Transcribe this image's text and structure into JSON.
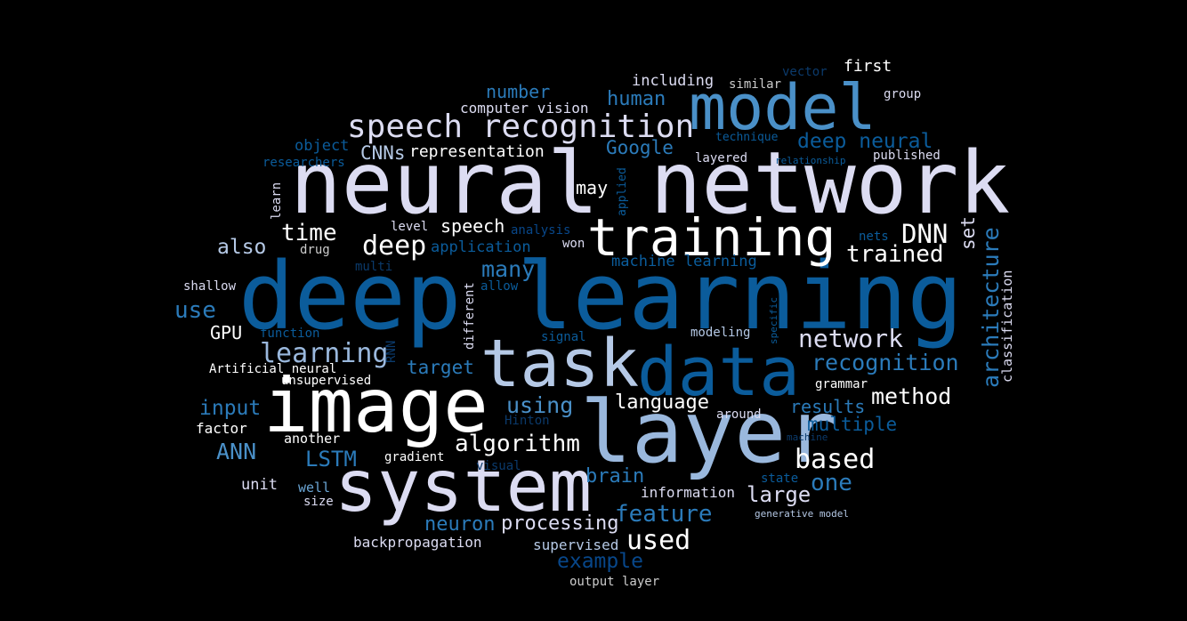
{
  "palette": {
    "white": "#ffffff",
    "lavender": "#dcdcf2",
    "silver": "#cccccc",
    "pale_blue": "#b5c9e6",
    "light_blue": "#9ab8dd",
    "sky": "#6aa5d4",
    "mid_blue": "#4a90c8",
    "blue": "#2b7bba",
    "deep_blue": "#0b5c9b",
    "navy": "#08478a",
    "dark_navy": "#0b3a6b"
  },
  "words": {
    "w001": "deep learning",
    "w002": "neural network",
    "w003": "image",
    "w004": "system",
    "w005": "layer",
    "w006": "data",
    "w007": "task",
    "w008": "model",
    "w009": "training",
    "w010": "speech recognition",
    "w011": "deep",
    "w012": "DNN",
    "w013": "network",
    "w014": "algorithm",
    "w015": "learning",
    "w016": "time",
    "w017": "trained",
    "w018": "recognition",
    "w019": "based",
    "w020": "used",
    "w021": "architecture",
    "w022": "deep neural",
    "w023": "method",
    "w024": "feature",
    "w025": "many",
    "w026": "using",
    "w027": "one",
    "w028": "large",
    "w029": "human",
    "w030": "number",
    "w031": "use",
    "w032": "also",
    "w033": "ANN",
    "w034": "LSTM",
    "w035": "language",
    "w036": "processing",
    "w037": "input",
    "w038": "results",
    "w039": "multiple",
    "w040": "Google",
    "w041": "CNNs",
    "w042": "representation",
    "w043": "speech",
    "w044": "brain",
    "w045": "neuron",
    "w046": "example",
    "w047": "target",
    "w048": "set",
    "w049": "may",
    "w050": "GPU",
    "w051": "first",
    "w052": "including",
    "w053": "computer vision",
    "w054": "object",
    "w055": "application",
    "w056": "machine learning",
    "w057": "information",
    "w058": "backpropagation",
    "w059": "supervised",
    "w060": "output layer",
    "w061": "unsupervised",
    "w062": "Artificial neural",
    "w063": "factor",
    "w064": "another",
    "w065": "gradient",
    "w066": "unit",
    "w067": "well",
    "w068": "size",
    "w069": "around",
    "w070": "grammar",
    "w071": "state",
    "w072": "generative model",
    "w073": "published",
    "w074": "layered",
    "w075": "group",
    "w076": "similar",
    "w077": "vector",
    "w078": "technique",
    "w079": "relationship",
    "w080": "nets",
    "w081": "won",
    "w082": "analysis",
    "w083": "level",
    "w084": "drug",
    "w085": "multi",
    "w086": "allow",
    "w087": "shallow",
    "w088": "function",
    "w089": "signal",
    "w090": "modeling",
    "w091": "Hinton",
    "w092": "visual",
    "w093": "machine",
    "w094": "researchers",
    "w095": "learn",
    "w096": "applied",
    "w097": "different",
    "w098": "RNN",
    "w099": "specific",
    "w100": "classification"
  }
}
